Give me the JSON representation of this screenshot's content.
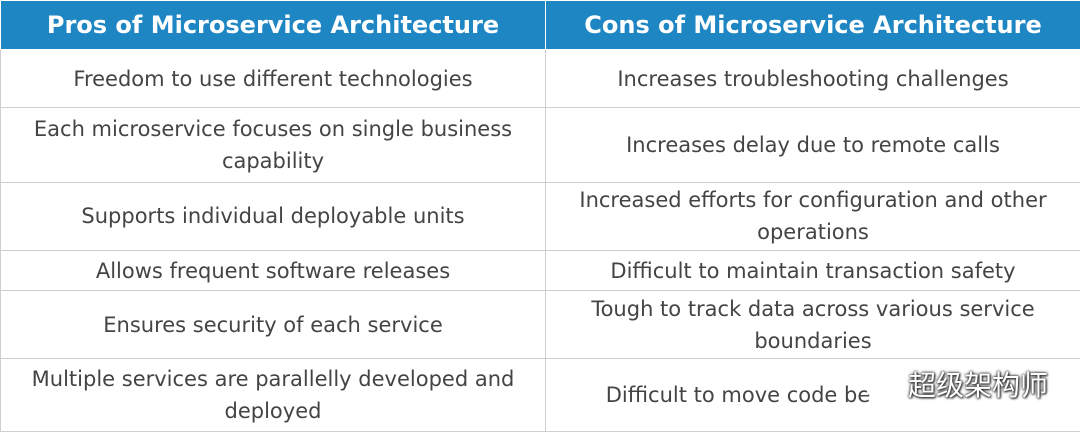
{
  "table": {
    "headers": {
      "pros": "Pros of Microservice Architecture",
      "cons": "Cons of Microservice Architecture"
    },
    "rows": [
      {
        "pro": "Freedom to use different technologies",
        "con": "Increases troubleshooting challenges"
      },
      {
        "pro": "Each microservice focuses on single business capability",
        "con": "Increases delay due to remote calls"
      },
      {
        "pro": "Supports individual deployable units",
        "con": "Increased efforts for configuration and other operations"
      },
      {
        "pro": "Allows frequent software releases",
        "con": "Difficult to maintain transaction safety"
      },
      {
        "pro": "Ensures security of each service",
        "con": "Tough to track data across various service boundaries"
      },
      {
        "pro": "Multiple services are parallelly developed and deployed",
        "con": "Difficult to move code be"
      }
    ]
  },
  "watermark": {
    "text": "超级架构师",
    "icon": "wechat-logo-icon"
  },
  "colors": {
    "header_bg": "#1f86c4",
    "header_text": "#ffffff",
    "body_text": "#444444",
    "border": "#cfcfcf"
  }
}
